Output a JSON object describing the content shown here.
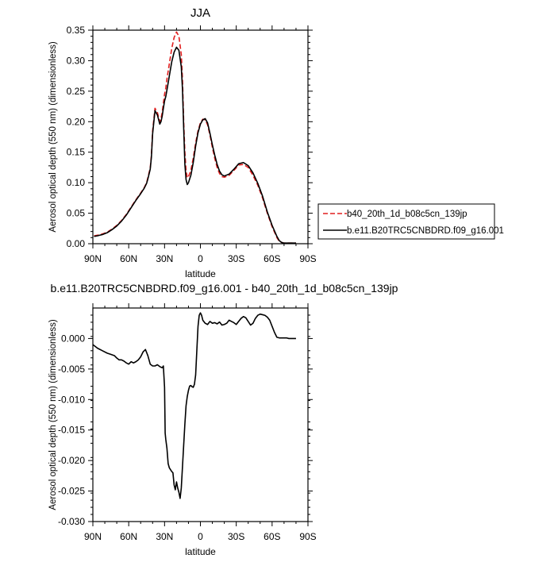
{
  "colors": {
    "model_a": "#e11f1f",
    "model_b": "#000000"
  },
  "chart_data": [
    {
      "type": "line",
      "title": "JJA",
      "xlabel": "latitude",
      "ylabel": "Aerosol optical depth (550 nm) (dimensionless)",
      "xlim": [
        90,
        -90
      ],
      "ylim": [
        0.0,
        0.35
      ],
      "x_ticks": [
        "90N",
        "60N",
        "30N",
        "0",
        "30S",
        "60S",
        "90S"
      ],
      "y_ticks": [
        "0.00",
        "0.05",
        "0.10",
        "0.15",
        "0.20",
        "0.25",
        "0.30",
        "0.35"
      ],
      "legend_position": "right",
      "series": [
        {
          "name": "b40_20th_1d_b08c5cn_139jp",
          "style": "dashed",
          "color": "#e11f1f",
          "x": [
            89,
            86,
            82,
            78,
            74,
            70,
            66,
            62,
            58,
            54,
            50,
            47,
            45,
            44,
            43,
            42,
            41,
            40,
            38,
            36,
            34,
            33,
            32,
            31,
            30,
            29,
            28,
            26,
            24,
            22,
            20,
            18,
            16,
            15,
            14,
            13,
            12,
            11,
            10,
            8,
            6,
            4,
            2,
            0,
            -2,
            -4,
            -6,
            -8,
            -10,
            -12,
            -14,
            -16,
            -18,
            -20,
            -24,
            -28,
            -32,
            -36,
            -40,
            -44,
            -48,
            -52,
            -56,
            -60,
            -64,
            -66,
            -68,
            -70,
            -72,
            -74,
            -76,
            -78,
            -80
          ],
          "y": [
            0.013,
            0.014,
            0.016,
            0.019,
            0.024,
            0.03,
            0.038,
            0.048,
            0.06,
            0.072,
            0.083,
            0.092,
            0.1,
            0.108,
            0.116,
            0.124,
            0.145,
            0.185,
            0.222,
            0.215,
            0.2,
            0.205,
            0.215,
            0.23,
            0.245,
            0.255,
            0.27,
            0.295,
            0.32,
            0.338,
            0.347,
            0.34,
            0.31,
            0.27,
            0.2,
            0.15,
            0.12,
            0.108,
            0.11,
            0.12,
            0.14,
            0.165,
            0.185,
            0.198,
            0.204,
            0.203,
            0.195,
            0.178,
            0.158,
            0.14,
            0.125,
            0.115,
            0.11,
            0.109,
            0.112,
            0.12,
            0.129,
            0.13,
            0.125,
            0.112,
            0.096,
            0.075,
            0.05,
            0.028,
            0.01,
            0.004,
            0.002,
            0.001,
            0.001,
            0.001,
            0.001,
            0.001,
            0.001
          ]
        },
        {
          "name": "b.e11.B20TRC5CNBDRD.f09_g16.001",
          "style": "solid",
          "color": "#000000",
          "x": [
            89,
            86,
            82,
            78,
            74,
            70,
            66,
            62,
            58,
            54,
            50,
            47,
            45,
            44,
            43,
            42,
            41,
            40,
            38,
            36,
            34,
            33,
            32,
            31,
            30,
            29,
            28,
            26,
            24,
            22,
            20,
            18,
            16,
            15,
            14,
            13,
            12,
            11,
            10,
            8,
            6,
            4,
            2,
            0,
            -2,
            -4,
            -6,
            -8,
            -10,
            -12,
            -14,
            -16,
            -18,
            -20,
            -24,
            -28,
            -32,
            -36,
            -40,
            -44,
            -48,
            -52,
            -56,
            -60,
            -64,
            -66,
            -68,
            -70,
            -72,
            -74,
            -76,
            -78,
            -80
          ],
          "y": [
            0.012,
            0.013,
            0.015,
            0.018,
            0.023,
            0.029,
            0.037,
            0.047,
            0.059,
            0.071,
            0.082,
            0.091,
            0.099,
            0.106,
            0.114,
            0.122,
            0.142,
            0.18,
            0.218,
            0.211,
            0.196,
            0.2,
            0.209,
            0.222,
            0.234,
            0.241,
            0.252,
            0.275,
            0.298,
            0.314,
            0.322,
            0.317,
            0.29,
            0.253,
            0.19,
            0.13,
            0.105,
            0.097,
            0.1,
            0.112,
            0.133,
            0.16,
            0.182,
            0.196,
            0.203,
            0.205,
            0.198,
            0.181,
            0.162,
            0.145,
            0.13,
            0.119,
            0.113,
            0.111,
            0.114,
            0.122,
            0.131,
            0.133,
            0.128,
            0.116,
            0.099,
            0.078,
            0.052,
            0.03,
            0.012,
            0.005,
            0.002,
            0.001,
            0.001,
            0.001,
            0.001,
            0.001,
            0.001
          ]
        }
      ]
    },
    {
      "type": "line",
      "title": "b.e11.B20TRC5CNBDRD.f09_g16.001 - b40_20th_1d_b08c5cn_139jp",
      "xlabel": "latitude",
      "ylabel": "Aerosol optical depth (550 nm) (dimensionless)",
      "xlim": [
        90,
        -90
      ],
      "ylim": [
        -0.03,
        0.005
      ],
      "x_ticks": [
        "90N",
        "60N",
        "30N",
        "0",
        "30S",
        "60S",
        "90S"
      ],
      "y_ticks": [
        "0.000",
        "-0.005",
        "-0.010",
        "-0.015",
        "-0.020",
        "-0.025",
        "-0.030"
      ],
      "series": [
        {
          "style": "solid",
          "color": "#000000",
          "x": [
            90,
            86,
            82,
            78,
            75,
            72,
            70,
            68,
            66,
            64,
            62,
            60,
            58,
            56,
            54,
            52,
            50,
            48,
            46,
            44,
            42,
            40,
            38,
            36,
            34,
            32,
            31,
            30,
            29.5,
            29,
            28,
            27,
            26,
            25,
            24,
            23,
            22,
            21,
            20,
            19,
            18,
            17,
            16,
            15,
            14,
            13,
            12,
            11,
            10,
            9,
            8,
            7,
            6,
            5,
            4,
            3,
            2,
            1,
            0,
            -1,
            -2,
            -4,
            -6,
            -8,
            -10,
            -12,
            -14,
            -16,
            -18,
            -20,
            -22,
            -24,
            -26,
            -28,
            -30,
            -32,
            -34,
            -36,
            -38,
            -40,
            -42,
            -44,
            -46,
            -48,
            -50,
            -52,
            -54,
            -56,
            -58,
            -60,
            -62,
            -64,
            -66,
            -68,
            -70,
            -72,
            -74,
            -76,
            -78,
            -80
          ],
          "y": [
            -0.001,
            -0.0016,
            -0.002,
            -0.0024,
            -0.0026,
            -0.0028,
            -0.0032,
            -0.0035,
            -0.0035,
            -0.0037,
            -0.004,
            -0.0042,
            -0.0038,
            -0.004,
            -0.0038,
            -0.0035,
            -0.003,
            -0.0022,
            -0.0018,
            -0.0028,
            -0.0042,
            -0.0045,
            -0.0045,
            -0.0043,
            -0.0046,
            -0.0048,
            -0.0045,
            -0.008,
            -0.0155,
            -0.0165,
            -0.018,
            -0.0205,
            -0.0212,
            -0.0215,
            -0.0218,
            -0.022,
            -0.024,
            -0.0248,
            -0.0235,
            -0.0245,
            -0.0252,
            -0.0262,
            -0.0245,
            -0.021,
            -0.0175,
            -0.014,
            -0.011,
            -0.0095,
            -0.0085,
            -0.0078,
            -0.0077,
            -0.0079,
            -0.008,
            -0.0075,
            -0.006,
            -0.002,
            0.002,
            0.0038,
            0.0042,
            0.0038,
            0.003,
            0.0025,
            0.0023,
            0.0028,
            0.0025,
            0.0026,
            0.0024,
            0.0027,
            0.0022,
            0.0023,
            0.0025,
            0.003,
            0.0028,
            0.0026,
            0.0023,
            0.0028,
            0.0033,
            0.0036,
            0.0034,
            0.0028,
            0.0022,
            0.0025,
            0.0033,
            0.0038,
            0.004,
            0.0039,
            0.0038,
            0.0035,
            0.003,
            0.002,
            0.001,
            0.0002,
            0.0001,
            0.0001,
            0.0001,
            0.0001,
            0.0,
            0.0,
            0.0,
            0.0
          ]
        }
      ]
    }
  ]
}
